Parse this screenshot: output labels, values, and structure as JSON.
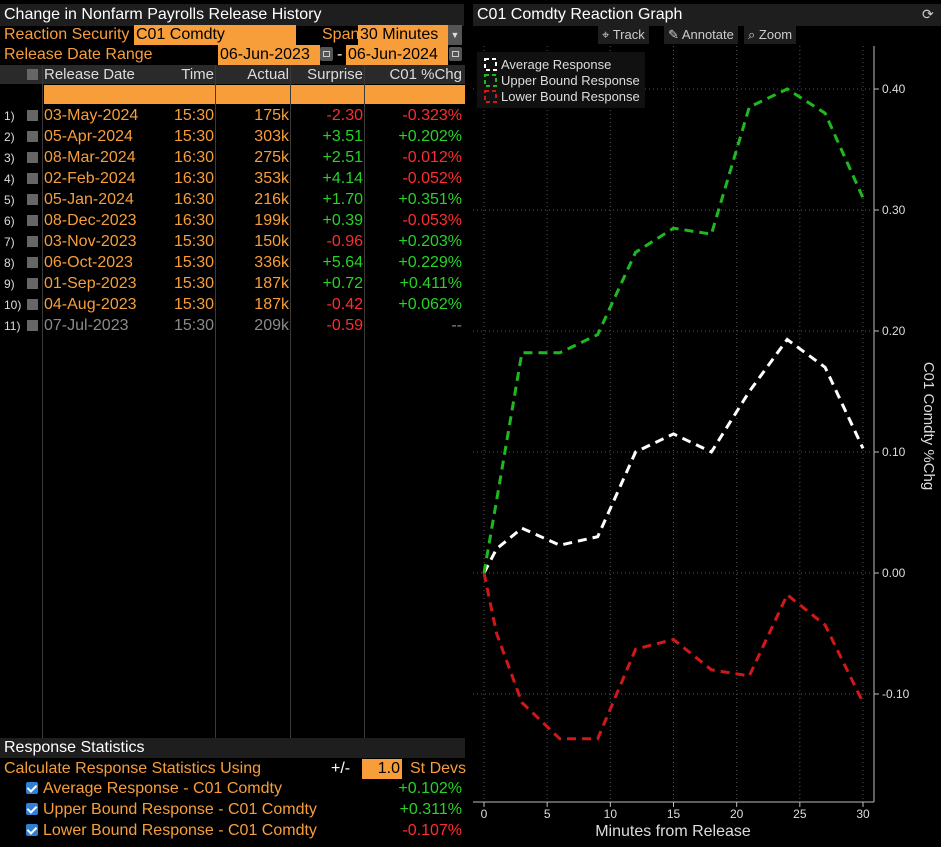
{
  "left_panel": {
    "title": "Change in Nonfarm Payrolls Release History",
    "reaction_security_label": "Reaction Security",
    "reaction_security_value": "C01 Comdty",
    "span_label": "Span",
    "span_value": "30 Minutes",
    "release_range_label": "Release Date Range",
    "range_start": "06-Jun-2023",
    "range_dash": "-",
    "range_end": "06-Jun-2024",
    "columns": [
      "Release Date",
      "Time",
      "Actual",
      "Surprise",
      "C01 %Chg"
    ],
    "rows": [
      {
        "num": "1)",
        "date": "03-May-2024",
        "time": "15:30",
        "actual": "175k",
        "surprise": "-2.30",
        "chg": "-0.323%",
        "s_color": "red",
        "c_color": "red",
        "dim": false
      },
      {
        "num": "2)",
        "date": "05-Apr-2024",
        "time": "15:30",
        "actual": "303k",
        "surprise": "+3.51",
        "chg": "+0.202%",
        "s_color": "green",
        "c_color": "green",
        "dim": false
      },
      {
        "num": "3)",
        "date": "08-Mar-2024",
        "time": "16:30",
        "actual": "275k",
        "surprise": "+2.51",
        "chg": "-0.012%",
        "s_color": "green",
        "c_color": "red",
        "dim": false
      },
      {
        "num": "4)",
        "date": "02-Feb-2024",
        "time": "16:30",
        "actual": "353k",
        "surprise": "+4.14",
        "chg": "-0.052%",
        "s_color": "green",
        "c_color": "red",
        "dim": false
      },
      {
        "num": "5)",
        "date": "05-Jan-2024",
        "time": "16:30",
        "actual": "216k",
        "surprise": "+1.70",
        "chg": "+0.351%",
        "s_color": "green",
        "c_color": "green",
        "dim": false
      },
      {
        "num": "6)",
        "date": "08-Dec-2023",
        "time": "16:30",
        "actual": "199k",
        "surprise": "+0.39",
        "chg": "-0.053%",
        "s_color": "green",
        "c_color": "red",
        "dim": false
      },
      {
        "num": "7)",
        "date": "03-Nov-2023",
        "time": "15:30",
        "actual": "150k",
        "surprise": "-0.96",
        "chg": "+0.203%",
        "s_color": "red",
        "c_color": "green",
        "dim": false
      },
      {
        "num": "8)",
        "date": "06-Oct-2023",
        "time": "15:30",
        "actual": "336k",
        "surprise": "+5.64",
        "chg": "+0.229%",
        "s_color": "green",
        "c_color": "green",
        "dim": false
      },
      {
        "num": "9)",
        "date": "01-Sep-2023",
        "time": "15:30",
        "actual": "187k",
        "surprise": "+0.72",
        "chg": "+0.411%",
        "s_color": "green",
        "c_color": "green",
        "dim": false
      },
      {
        "num": "10)",
        "date": "04-Aug-2023",
        "time": "15:30",
        "actual": "187k",
        "surprise": "-0.42",
        "chg": "+0.062%",
        "s_color": "red",
        "c_color": "green",
        "dim": false
      },
      {
        "num": "11)",
        "date": "07-Jul-2023",
        "time": "15:30",
        "actual": "209k",
        "surprise": "-0.59",
        "chg": "--",
        "s_color": "red",
        "c_color": "grey",
        "dim": true
      }
    ]
  },
  "stats": {
    "title": "Response Statistics",
    "calc_label": "Calculate Response Statistics Using",
    "plusminus": "+/-",
    "stdev_value": "1.0",
    "stdev_label": "St Devs",
    "rows": [
      {
        "label": "Average Response - C01 Comdty",
        "value": "+0.102%",
        "color": "green"
      },
      {
        "label": "Upper Bound Response - C01 Comdty",
        "value": "+0.311%",
        "color": "green"
      },
      {
        "label": "Lower Bound Response - C01 Comdty",
        "value": "-0.107%",
        "color": "red"
      }
    ]
  },
  "right_panel": {
    "title": "C01 Comdty Reaction Graph",
    "toolbar": {
      "track": "Track",
      "annotate": "Annotate",
      "zoom": "Zoom"
    }
  },
  "chart_data": {
    "type": "line",
    "xlabel": "Minutes from Release",
    "ylabel": "C01 Comdty %Chg",
    "xlim": [
      0,
      30
    ],
    "ylim": [
      -0.18,
      0.45
    ],
    "xticks": [
      0,
      5,
      10,
      15,
      20,
      25,
      30
    ],
    "yticks": [
      0.4,
      0.3,
      0.2,
      0.1,
      0.0,
      -0.1
    ],
    "ytick_labels": [
      "0.40",
      "0.30",
      "0.20",
      "0.10",
      "0.00",
      "-0.10"
    ],
    "grid": true,
    "legend_position": "top-left",
    "series": [
      {
        "name": "Average Response",
        "color": "#ffffff",
        "x": [
          0,
          1,
          3,
          6,
          9,
          12,
          15,
          18,
          21,
          24,
          27,
          30
        ],
        "y": [
          0,
          0.02,
          0.037,
          0.023,
          0.03,
          0.1,
          0.115,
          0.1,
          0.15,
          0.193,
          0.17,
          0.103
        ]
      },
      {
        "name": "Upper Bound Response",
        "color": "#1fb81f",
        "x": [
          0,
          1,
          3,
          6,
          9,
          12,
          15,
          18,
          21,
          24,
          27,
          30
        ],
        "y": [
          0,
          0.06,
          0.182,
          0.182,
          0.197,
          0.265,
          0.285,
          0.28,
          0.385,
          0.4,
          0.38,
          0.31
        ]
      },
      {
        "name": "Lower Bound Response",
        "color": "#d01818",
        "x": [
          0,
          1,
          3,
          6,
          9,
          12,
          15,
          18,
          21,
          24,
          27,
          30
        ],
        "y": [
          0,
          -0.05,
          -0.107,
          -0.137,
          -0.137,
          -0.063,
          -0.055,
          -0.08,
          -0.085,
          -0.018,
          -0.043,
          -0.107
        ]
      }
    ]
  }
}
